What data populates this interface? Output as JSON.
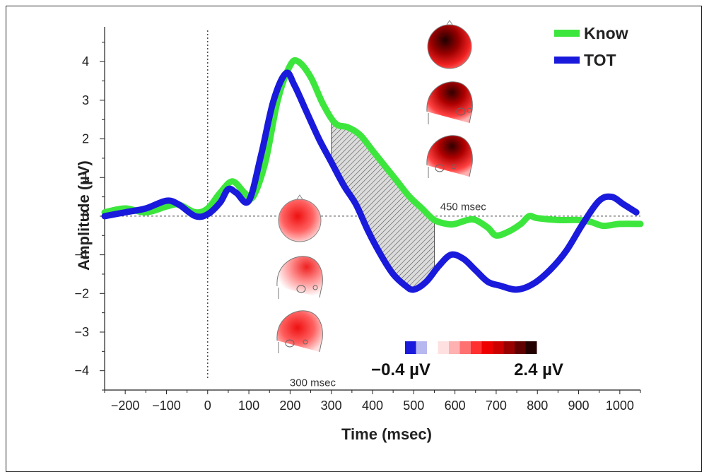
{
  "chart_data": {
    "type": "line",
    "xlabel": "Time (msec)",
    "ylabel": "Amplitude (µV)",
    "xlim": [
      -250,
      1050
    ],
    "ylim": [
      -4.5,
      4.9
    ],
    "x_ticks": [
      -200,
      -100,
      0,
      100,
      200,
      300,
      400,
      500,
      600,
      700,
      800,
      900,
      1000
    ],
    "y_ticks": [
      4,
      3,
      2,
      1,
      0,
      -1,
      -2,
      -3,
      -4
    ],
    "grid": false,
    "legend_position": "top-right",
    "series": [
      {
        "name": "Know",
        "color": "#3de63d",
        "points": [
          [
            -250,
            0.1
          ],
          [
            -200,
            0.2
          ],
          [
            -150,
            0.1
          ],
          [
            -100,
            0.25
          ],
          [
            -70,
            0.3
          ],
          [
            -30,
            0.1
          ],
          [
            0,
            0.2
          ],
          [
            30,
            0.6
          ],
          [
            60,
            0.9
          ],
          [
            90,
            0.6
          ],
          [
            110,
            0.5
          ],
          [
            140,
            1.4
          ],
          [
            170,
            3.0
          ],
          [
            200,
            3.9
          ],
          [
            220,
            4.0
          ],
          [
            250,
            3.6
          ],
          [
            280,
            2.9
          ],
          [
            310,
            2.4
          ],
          [
            340,
            2.3
          ],
          [
            370,
            2.1
          ],
          [
            400,
            1.7
          ],
          [
            430,
            1.3
          ],
          [
            460,
            0.9
          ],
          [
            490,
            0.5
          ],
          [
            520,
            0.2
          ],
          [
            550,
            -0.1
          ],
          [
            580,
            -0.2
          ],
          [
            600,
            -0.2
          ],
          [
            630,
            -0.1
          ],
          [
            650,
            -0.1
          ],
          [
            680,
            -0.3
          ],
          [
            700,
            -0.5
          ],
          [
            730,
            -0.4
          ],
          [
            760,
            -0.2
          ],
          [
            780,
            0.0
          ],
          [
            800,
            -0.05
          ],
          [
            850,
            -0.1
          ],
          [
            900,
            -0.1
          ],
          [
            930,
            -0.15
          ],
          [
            960,
            -0.25
          ],
          [
            1000,
            -0.2
          ],
          [
            1050,
            -0.2
          ]
        ]
      },
      {
        "name": "TOT",
        "color": "#1a1add",
        "points": [
          [
            -250,
            0.0
          ],
          [
            -200,
            0.1
          ],
          [
            -150,
            0.2
          ],
          [
            -100,
            0.4
          ],
          [
            -70,
            0.3
          ],
          [
            -30,
            0.0
          ],
          [
            0,
            0.05
          ],
          [
            30,
            0.35
          ],
          [
            50,
            0.7
          ],
          [
            70,
            0.6
          ],
          [
            100,
            0.4
          ],
          [
            130,
            1.6
          ],
          [
            160,
            3.0
          ],
          [
            190,
            3.7
          ],
          [
            210,
            3.4
          ],
          [
            240,
            2.7
          ],
          [
            270,
            2.0
          ],
          [
            300,
            1.4
          ],
          [
            330,
            0.8
          ],
          [
            360,
            0.3
          ],
          [
            390,
            -0.4
          ],
          [
            420,
            -1.0
          ],
          [
            450,
            -1.5
          ],
          [
            480,
            -1.8
          ],
          [
            500,
            -1.9
          ],
          [
            530,
            -1.7
          ],
          [
            560,
            -1.3
          ],
          [
            590,
            -1.0
          ],
          [
            620,
            -1.1
          ],
          [
            650,
            -1.4
          ],
          [
            680,
            -1.7
          ],
          [
            710,
            -1.8
          ],
          [
            750,
            -1.9
          ],
          [
            790,
            -1.75
          ],
          [
            830,
            -1.4
          ],
          [
            870,
            -0.9
          ],
          [
            910,
            -0.2
          ],
          [
            950,
            0.4
          ],
          [
            980,
            0.5
          ],
          [
            1010,
            0.3
          ],
          [
            1040,
            0.1
          ]
        ]
      }
    ],
    "shaded_region": {
      "x": [
        300,
        550
      ],
      "between": [
        "Know",
        "TOT"
      ]
    },
    "annotations": [
      {
        "text": "450 msec",
        "x": 620,
        "y": 0.15
      },
      {
        "text": "300 msec",
        "x": 255,
        "y": -4.4
      }
    ],
    "colorbar": {
      "min_label": "−0.4 µV",
      "max_label": "2.4 µV",
      "colors": [
        "#1a1add",
        "#b8b8f0",
        "#ffffff",
        "#ffe0e0",
        "#ffb0b0",
        "#ff7070",
        "#ff3030",
        "#ee0000",
        "#cc0000",
        "#990000",
        "#600000",
        "#250000"
      ]
    }
  }
}
